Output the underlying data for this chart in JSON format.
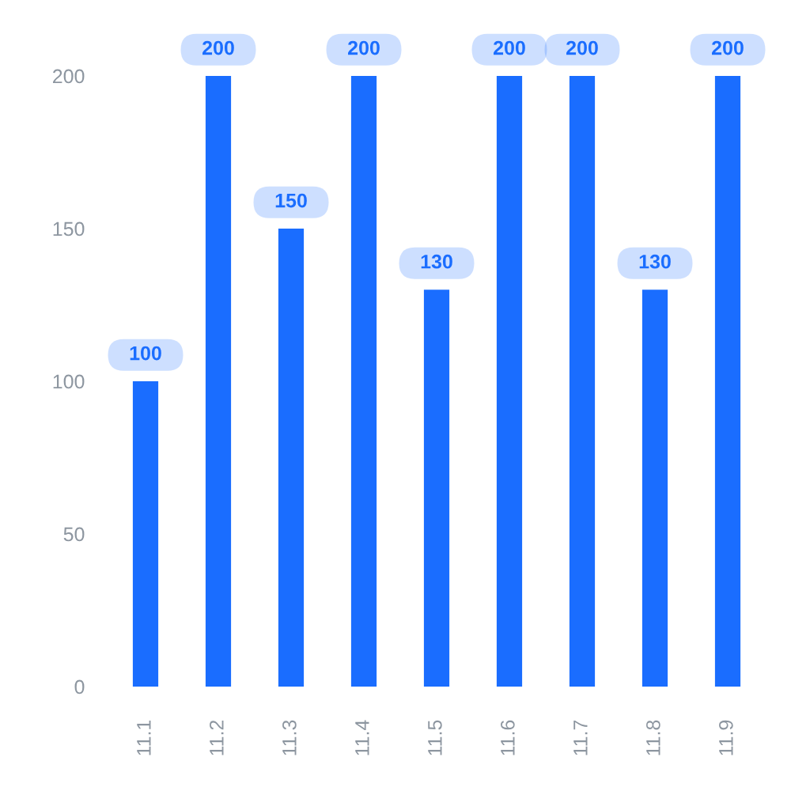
{
  "chart_data": {
    "type": "bar",
    "categories": [
      "11.1",
      "11.2",
      "11.3",
      "11.4",
      "11.5",
      "11.6",
      "11.7",
      "11.8",
      "11.9"
    ],
    "values": [
      100,
      200,
      150,
      200,
      130,
      200,
      200,
      130,
      200
    ],
    "color": "#1a6dff",
    "ylim": [
      0,
      200
    ],
    "yticks": [
      0,
      50,
      100,
      150,
      200
    ],
    "data_labels": true
  }
}
